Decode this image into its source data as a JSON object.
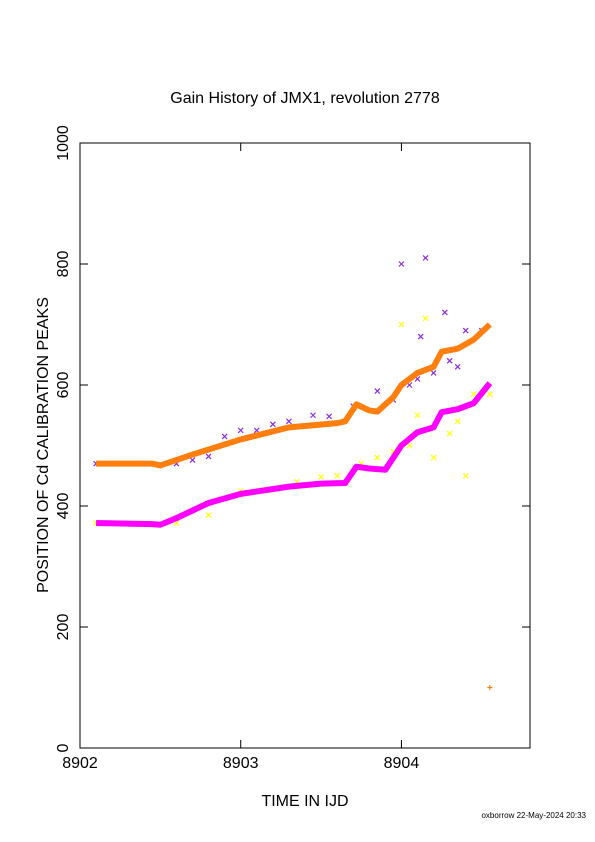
{
  "chart_data": {
    "type": "scatter",
    "title": "Gain History of JMX1, revolution 2778",
    "x_label": "TIME IN IJD",
    "y_label": "POSITION OF Cd CALIBRATION PEAKS",
    "footer": "oxborrow 22-May-2024 20:33",
    "xlim": [
      8902,
      8904.8
    ],
    "xticks": [
      8902,
      8903,
      8904
    ],
    "ylim": [
      0,
      1000
    ],
    "yticks": [
      0,
      200,
      400,
      600,
      800,
      1000
    ],
    "series": [
      {
        "color": "#8a2be2",
        "mode": "points",
        "marker": "x",
        "x": [
          8902.1,
          8902.3,
          8902.6,
          8902.7,
          8902.8,
          8902.9,
          8903.0,
          8903.1,
          8903.2,
          8903.3,
          8903.45,
          8903.55,
          8903.7,
          8903.85,
          8903.95,
          8904.0,
          8904.05,
          8904.1,
          8904.12,
          8904.15,
          8904.2,
          8904.27,
          8904.3,
          8904.35,
          8904.4,
          8904.5
        ],
        "values": [
          470,
          470,
          470,
          476,
          482,
          515,
          525,
          525,
          535,
          540,
          550,
          548,
          565,
          590,
          575,
          800,
          600,
          610,
          680,
          810,
          620,
          720,
          640,
          630,
          690,
          690
        ]
      },
      {
        "color": "#ffff00",
        "mode": "points",
        "marker": "x",
        "x": [
          8902.1,
          8902.6,
          8902.8,
          8903.0,
          8903.2,
          8903.35,
          8903.5,
          8903.6,
          8903.75,
          8903.85,
          8903.95,
          8904.0,
          8904.05,
          8904.1,
          8904.15,
          8904.2,
          8904.3,
          8904.35,
          8904.4,
          8904.45,
          8904.55
        ],
        "values": [
          372,
          372,
          385,
          425,
          428,
          440,
          448,
          450,
          470,
          480,
          490,
          700,
          500,
          550,
          710,
          480,
          520,
          540,
          450,
          585,
          585
        ]
      },
      {
        "color": "#ff7f0e",
        "mode": "line",
        "x": [
          8902.1,
          8902.45,
          8902.5,
          8902.7,
          8903.0,
          8903.3,
          8903.6,
          8903.65,
          8903.72,
          8903.8,
          8903.85,
          8903.95,
          8904.0,
          8904.1,
          8904.2,
          8904.25,
          8904.35,
          8904.45,
          8904.55
        ],
        "values": [
          470,
          470,
          467,
          485,
          510,
          530,
          537,
          540,
          568,
          558,
          556,
          580,
          600,
          620,
          630,
          655,
          660,
          675,
          700
        ]
      },
      {
        "color": "#ff00ff",
        "mode": "line",
        "x": [
          8902.1,
          8902.45,
          8902.5,
          8902.6,
          8902.8,
          8903.0,
          8903.3,
          8903.5,
          8903.65,
          8903.72,
          8903.8,
          8903.9,
          8904.0,
          8904.1,
          8904.2,
          8904.25,
          8904.35,
          8904.45,
          8904.55
        ],
        "values": [
          372,
          370,
          369,
          380,
          405,
          420,
          432,
          437,
          438,
          465,
          462,
          460,
          500,
          522,
          530,
          555,
          560,
          570,
          603
        ]
      },
      {
        "color": "#ff7f0e",
        "mode": "points",
        "marker": "+",
        "x": [
          8904.55
        ],
        "values": [
          100
        ]
      }
    ]
  }
}
